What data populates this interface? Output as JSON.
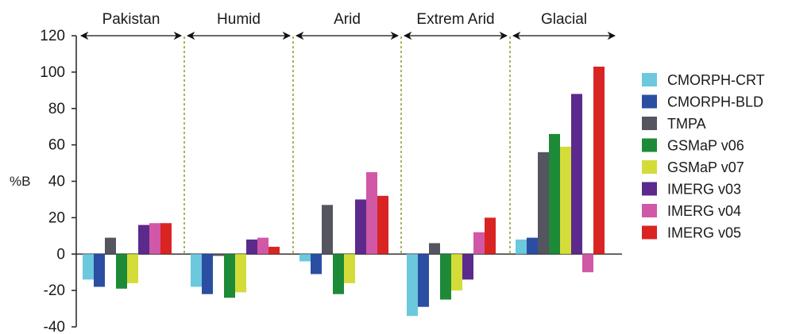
{
  "chart_data": {
    "type": "bar",
    "title": "",
    "xlabel": "",
    "ylabel": "%B",
    "ylim": [
      -40,
      120
    ],
    "yticks": [
      -40,
      -20,
      0,
      20,
      40,
      60,
      80,
      100,
      120
    ],
    "grid": false,
    "legend_position": "right",
    "categories": [
      "Pakistan",
      "Humid",
      "Arid",
      "Extrem Arid",
      "Glacial"
    ],
    "series": [
      {
        "name": "CMORPH-CRT",
        "color": "#6cc8dc",
        "values": [
          -14,
          -18,
          -4,
          -34,
          8
        ]
      },
      {
        "name": "CMORPH-BLD",
        "color": "#2b4ea3",
        "values": [
          -18,
          -22,
          -11,
          -29,
          9
        ]
      },
      {
        "name": "TMPA",
        "color": "#54555f",
        "values": [
          9,
          -1,
          27,
          6,
          56
        ]
      },
      {
        "name": "GSMaP v06",
        "color": "#1d8a37",
        "values": [
          -19,
          -24,
          -22,
          -25,
          66
        ]
      },
      {
        "name": "GSMaP v07",
        "color": "#d4dc3a",
        "values": [
          -16,
          -21,
          -16,
          -20,
          59
        ]
      },
      {
        "name": "IMERG v03",
        "color": "#5b2a8c",
        "values": [
          16,
          8,
          30,
          -14,
          88
        ]
      },
      {
        "name": "IMERG v04",
        "color": "#d058a7",
        "values": [
          17,
          9,
          45,
          12,
          -10
        ]
      },
      {
        "name": "IMERG v05",
        "color": "#d92424",
        "values": [
          17,
          4,
          32,
          20,
          103
        ]
      }
    ]
  }
}
